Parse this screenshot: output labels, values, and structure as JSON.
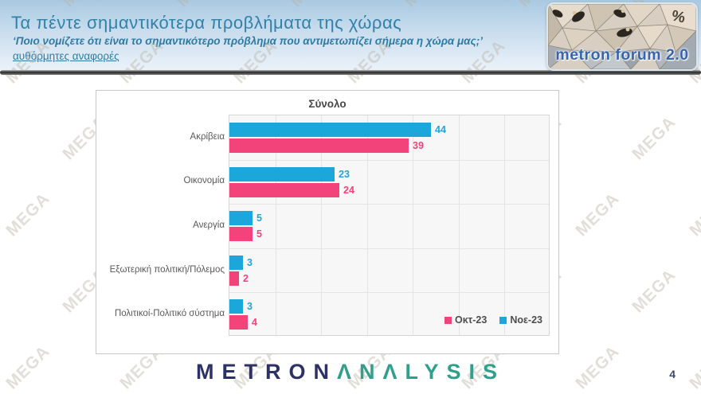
{
  "header": {
    "title": "Τα πέντε σημαντικότερα προβλήματα της χώρας",
    "subtitle": "‘Ποιο νομίζετε ότι είναι το σημαντικότερο πρόβλημα που αντιμετωπίζει σήμερα η χώρα μας;’",
    "note": "αυθόρμητες αναφορές",
    "logo": {
      "text": "metron forum 2.0",
      "percent_symbol": "%"
    }
  },
  "watermark": {
    "text": "MEGA"
  },
  "chart_data": {
    "type": "bar",
    "orientation": "horizontal",
    "title": "Σύνολο",
    "categories": [
      "Ακρίβεια",
      "Οικονομία",
      "Ανεργία",
      "Εξωτερική πολιτική/Πόλεμος",
      "Πολιτικοί-Πολιτικό σύστημα"
    ],
    "series": [
      {
        "name": "Νοε-23",
        "color": "#1ba7da",
        "values": [
          44,
          23,
          5,
          3,
          3
        ]
      },
      {
        "name": "Οκτ-23",
        "color": "#f2447b",
        "values": [
          39,
          24,
          5,
          2,
          4
        ]
      }
    ],
    "legend": [
      {
        "label": "Οκτ-23",
        "color": "#f2447b"
      },
      {
        "label": "Νοε-23",
        "color": "#1ba7da"
      }
    ],
    "xlim": [
      0,
      70
    ],
    "gridline_interval": 10,
    "grid": true,
    "legend_position": "bottom-right"
  },
  "footer": {
    "brand_metron": "METRON",
    "brand_analysis": "ΛNΛLYSIS",
    "page_number": "4"
  }
}
